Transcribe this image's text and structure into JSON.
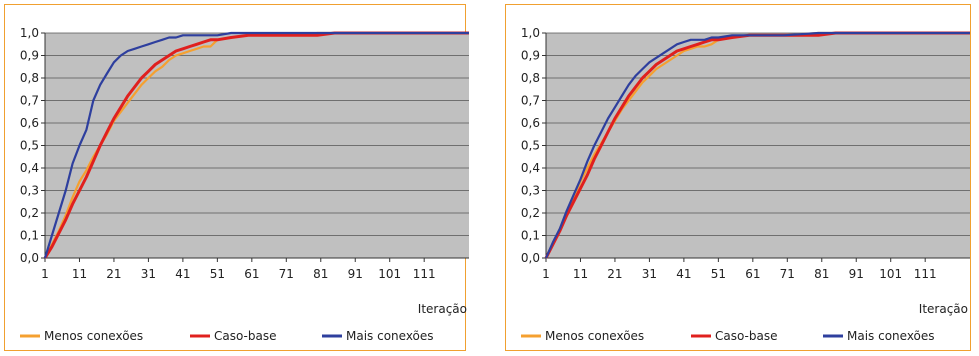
{
  "chart_data": [
    {
      "type": "line",
      "xlabel": "Iteração",
      "ylabel": "",
      "ylim": [
        0,
        1
      ],
      "x_ticks": [
        "1",
        "11",
        "21",
        "31",
        "41",
        "51",
        "61",
        "71",
        "81",
        "91",
        "101",
        "111"
      ],
      "y_ticks": [
        "0,0",
        "0,1",
        "0,2",
        "0,3",
        "0,4",
        "0,5",
        "0,6",
        "0,7",
        "0,8",
        "0,9",
        "1,0"
      ],
      "grid": "horizontal",
      "legend_position": "bottom",
      "series": [
        {
          "name": "Menos conexões",
          "color": "#f5a030",
          "x": [
            1,
            3,
            5,
            7,
            9,
            11,
            13,
            15,
            17,
            19,
            21,
            23,
            25,
            27,
            29,
            31,
            33,
            35,
            37,
            39,
            41,
            43,
            45,
            47,
            49,
            51,
            55,
            60,
            65,
            70,
            75,
            80,
            90,
            100,
            110,
            124
          ],
          "values": [
            0.0,
            0.06,
            0.12,
            0.19,
            0.27,
            0.34,
            0.39,
            0.45,
            0.5,
            0.55,
            0.61,
            0.65,
            0.69,
            0.73,
            0.77,
            0.8,
            0.83,
            0.85,
            0.88,
            0.9,
            0.91,
            0.92,
            0.93,
            0.94,
            0.94,
            0.97,
            0.98,
            0.99,
            0.99,
            0.99,
            0.99,
            1.0,
            1.0,
            1.0,
            1.0,
            1.0
          ]
        },
        {
          "name": "Caso-base",
          "color": "#e0201e",
          "x": [
            1,
            3,
            5,
            7,
            9,
            11,
            13,
            15,
            17,
            19,
            21,
            23,
            25,
            27,
            29,
            31,
            33,
            35,
            37,
            39,
            41,
            43,
            45,
            47,
            49,
            51,
            55,
            60,
            65,
            70,
            75,
            80,
            85,
            90,
            100,
            110,
            124
          ],
          "values": [
            0.0,
            0.05,
            0.11,
            0.17,
            0.24,
            0.3,
            0.36,
            0.43,
            0.5,
            0.56,
            0.62,
            0.67,
            0.72,
            0.76,
            0.8,
            0.83,
            0.86,
            0.88,
            0.9,
            0.92,
            0.93,
            0.94,
            0.95,
            0.96,
            0.97,
            0.97,
            0.98,
            0.99,
            0.99,
            0.99,
            0.99,
            0.99,
            1.0,
            1.0,
            1.0,
            1.0,
            1.0
          ]
        },
        {
          "name": "Mais conexões",
          "color": "#2e3f9e",
          "x": [
            1,
            3,
            5,
            7,
            9,
            11,
            13,
            15,
            17,
            19,
            21,
            23,
            25,
            27,
            29,
            31,
            33,
            35,
            37,
            39,
            41,
            45,
            51,
            55,
            60,
            70,
            80,
            90,
            100,
            110,
            124
          ],
          "values": [
            0.0,
            0.1,
            0.2,
            0.3,
            0.42,
            0.5,
            0.57,
            0.7,
            0.77,
            0.82,
            0.87,
            0.9,
            0.92,
            0.93,
            0.94,
            0.95,
            0.96,
            0.97,
            0.98,
            0.98,
            0.99,
            0.99,
            0.99,
            1.0,
            1.0,
            1.0,
            1.0,
            1.0,
            1.0,
            1.0,
            1.0
          ]
        }
      ]
    },
    {
      "type": "line",
      "xlabel": "Iteração",
      "ylabel": "",
      "ylim": [
        0,
        1
      ],
      "x_ticks": [
        "1",
        "11",
        "21",
        "31",
        "41",
        "51",
        "61",
        "71",
        "81",
        "91",
        "101",
        "111"
      ],
      "y_ticks": [
        "0,0",
        "0,1",
        "0,2",
        "0,3",
        "0,4",
        "0,5",
        "0,6",
        "0,7",
        "0,8",
        "0,9",
        "1,0"
      ],
      "grid": "horizontal",
      "legend_position": "bottom",
      "series": [
        {
          "name": "Menos conexões",
          "color": "#f5a030",
          "x": [
            1,
            3,
            5,
            7,
            9,
            11,
            13,
            15,
            17,
            19,
            21,
            23,
            25,
            27,
            29,
            31,
            33,
            35,
            37,
            39,
            41,
            43,
            45,
            47,
            49,
            51,
            55,
            60,
            65,
            70,
            80,
            90,
            100,
            110,
            124
          ],
          "values": [
            0.0,
            0.06,
            0.13,
            0.2,
            0.27,
            0.34,
            0.4,
            0.46,
            0.51,
            0.56,
            0.61,
            0.66,
            0.7,
            0.74,
            0.78,
            0.81,
            0.84,
            0.86,
            0.88,
            0.9,
            0.92,
            0.93,
            0.94,
            0.94,
            0.95,
            0.97,
            0.98,
            0.99,
            0.99,
            0.99,
            1.0,
            1.0,
            1.0,
            1.0,
            1.0
          ]
        },
        {
          "name": "Caso-base",
          "color": "#e0201e",
          "x": [
            1,
            3,
            5,
            7,
            9,
            11,
            13,
            15,
            17,
            19,
            21,
            23,
            25,
            27,
            29,
            31,
            33,
            35,
            37,
            39,
            41,
            43,
            45,
            47,
            49,
            51,
            55,
            60,
            65,
            70,
            80,
            85,
            90,
            100,
            110,
            124
          ],
          "values": [
            0.0,
            0.06,
            0.12,
            0.19,
            0.25,
            0.31,
            0.37,
            0.44,
            0.5,
            0.56,
            0.62,
            0.67,
            0.72,
            0.76,
            0.8,
            0.83,
            0.86,
            0.88,
            0.9,
            0.92,
            0.93,
            0.94,
            0.95,
            0.96,
            0.97,
            0.97,
            0.98,
            0.99,
            0.99,
            0.99,
            0.99,
            1.0,
            1.0,
            1.0,
            1.0,
            1.0
          ]
        },
        {
          "name": "Mais conexões",
          "color": "#2e3f9e",
          "x": [
            1,
            3,
            5,
            7,
            9,
            11,
            13,
            15,
            17,
            19,
            21,
            23,
            25,
            27,
            29,
            31,
            33,
            35,
            37,
            39,
            41,
            43,
            45,
            47,
            49,
            51,
            55,
            60,
            65,
            70,
            80,
            90,
            100,
            110,
            124
          ],
          "values": [
            0.0,
            0.07,
            0.13,
            0.21,
            0.28,
            0.35,
            0.43,
            0.5,
            0.56,
            0.62,
            0.67,
            0.72,
            0.77,
            0.81,
            0.84,
            0.87,
            0.89,
            0.91,
            0.93,
            0.95,
            0.96,
            0.97,
            0.97,
            0.97,
            0.98,
            0.98,
            0.99,
            0.99,
            0.99,
            0.99,
            1.0,
            1.0,
            1.0,
            1.0,
            1.0
          ]
        }
      ]
    }
  ]
}
